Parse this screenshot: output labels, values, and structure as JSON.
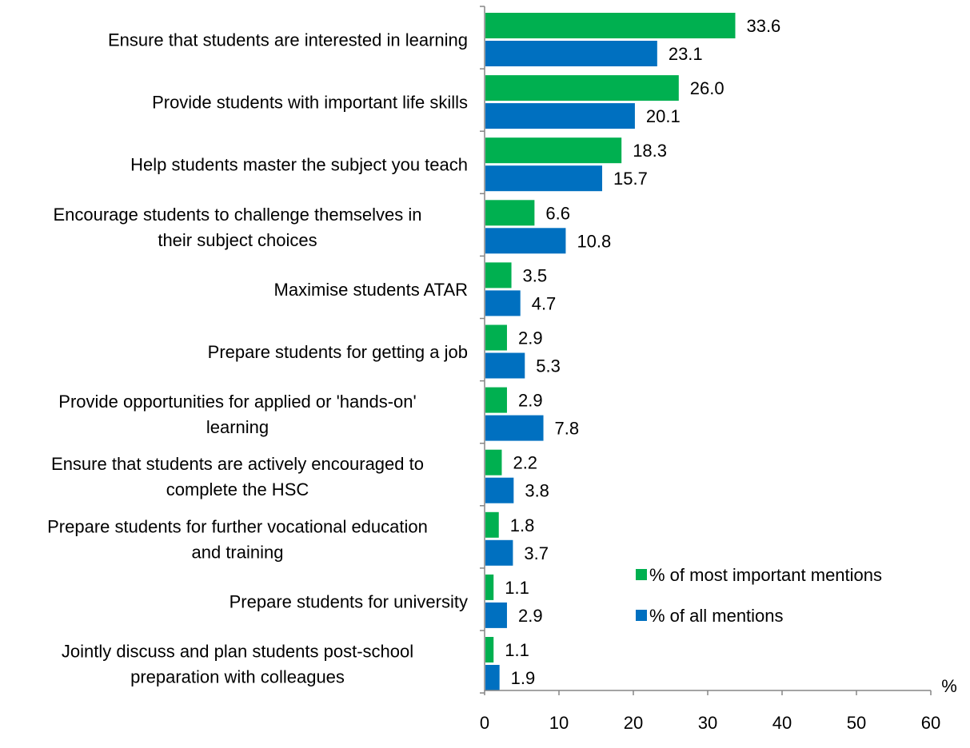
{
  "chart_data": {
    "type": "bar",
    "orientation": "horizontal",
    "categories": [
      [
        "Ensure that students are interested in learning"
      ],
      [
        "Provide students with important life skills"
      ],
      [
        "Help students master the subject you teach"
      ],
      [
        "Encourage students to challenge themselves in",
        "their subject choices"
      ],
      [
        "Maximise students ATAR"
      ],
      [
        "Prepare students for getting a job"
      ],
      [
        "Provide opportunities for applied or 'hands-on'",
        "learning"
      ],
      [
        "Ensure that students are actively encouraged to",
        "complete the HSC"
      ],
      [
        "Prepare students for further vocational education",
        "and training"
      ],
      [
        "Prepare students for university"
      ],
      [
        "Jointly discuss and plan students post-school",
        "preparation with colleagues"
      ]
    ],
    "series": [
      {
        "name": "% of most important mentions",
        "color": "#00b050",
        "values": [
          33.6,
          26.0,
          18.3,
          6.6,
          3.5,
          2.9,
          2.9,
          2.2,
          1.8,
          1.1,
          1.1
        ],
        "labels": [
          "33.6",
          "26.0",
          "18.3",
          "6.6",
          "3.5",
          "2.9",
          "2.9",
          "2.2",
          "1.8",
          "1.1",
          "1.1"
        ]
      },
      {
        "name": "% of all mentions",
        "color": "#0070c0",
        "values": [
          23.1,
          20.1,
          15.7,
          10.8,
          4.7,
          5.3,
          7.8,
          3.8,
          3.7,
          2.9,
          1.9
        ],
        "labels": [
          "23.1",
          "20.1",
          "15.7",
          "10.8",
          "4.7",
          "5.3",
          "7.8",
          "3.8",
          "3.7",
          "2.9",
          "1.9"
        ]
      }
    ],
    "x_ticks": [
      "0",
      "10",
      "20",
      "30",
      "40",
      "50",
      "60"
    ],
    "xlim": [
      0,
      60
    ],
    "unit_label": "%",
    "legend_position": "bottom-right",
    "grid": false
  }
}
